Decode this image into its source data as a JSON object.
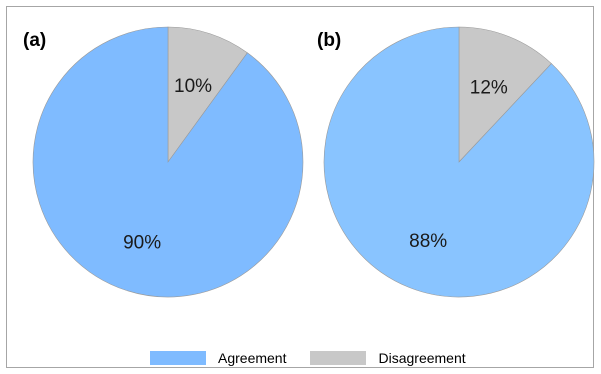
{
  "chart_data": [
    {
      "type": "pie",
      "panel_label": "(a)",
      "categories": [
        "Disagreement",
        "Agreement"
      ],
      "values": [
        10,
        90
      ],
      "labels": [
        "10%",
        "90%"
      ],
      "colors": [
        "#c8c8c8",
        "#7fbbff"
      ]
    },
    {
      "type": "pie",
      "panel_label": "(b)",
      "categories": [
        "Disagreement",
        "Agreement"
      ],
      "values": [
        12,
        88
      ],
      "labels": [
        "12%",
        "88%"
      ],
      "colors": [
        "#c8c8c8",
        "#89c4ff"
      ]
    }
  ],
  "legend": {
    "position": "bottom",
    "items": [
      {
        "label": "Agreement",
        "color": "#7fbbff"
      },
      {
        "label": "Disagreement",
        "color": "#c8c8c8"
      }
    ]
  }
}
